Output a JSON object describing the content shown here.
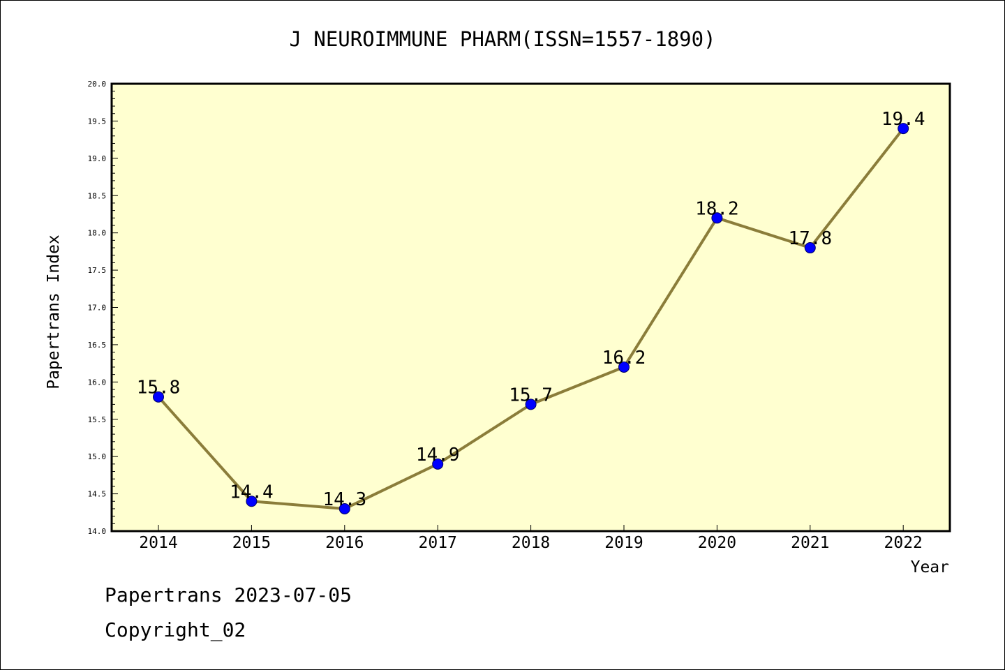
{
  "chart_data": {
    "type": "line",
    "title": "J NEUROIMMUNE PHARM(ISSN=1557-1890)",
    "xlabel": "Year",
    "ylabel": "Papertrans Index",
    "categories": [
      "2014",
      "2015",
      "2016",
      "2017",
      "2018",
      "2019",
      "2020",
      "2021",
      "2022"
    ],
    "series": [
      {
        "values": [
          15.8,
          14.4,
          14.3,
          14.9,
          15.7,
          16.2,
          18.2,
          17.8,
          19.4
        ],
        "data_labels": [
          "15.8",
          "14.4",
          "14.3",
          "14.9",
          "15.7",
          "16.2",
          "18.2",
          "17.8",
          "19.4"
        ]
      }
    ],
    "ylim": [
      14.0,
      20.0
    ],
    "yticks": [
      "14.0",
      "14.5",
      "15.0",
      "15.5",
      "16.0",
      "16.5",
      "17.0",
      "17.5",
      "18.0",
      "18.5",
      "19.0",
      "19.5",
      "20.0"
    ],
    "grid": false,
    "colors": {
      "plot_background": "#ffffd0",
      "line": "#8b7d3a",
      "marker_fill": "#0000ff",
      "marker_edge": "#000066"
    }
  },
  "footer": {
    "source": "Papertrans 2023-07-05",
    "copyright": "Copyright_02"
  }
}
